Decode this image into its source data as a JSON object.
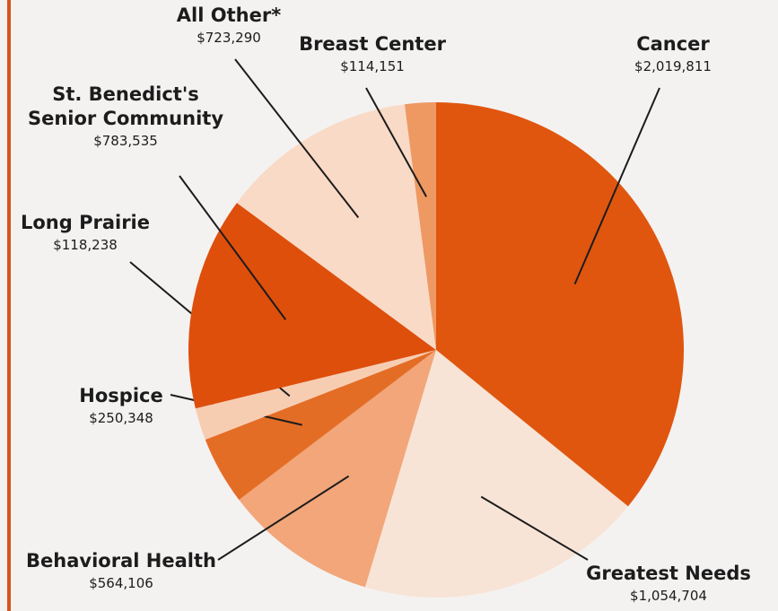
{
  "chart_data": {
    "type": "pie",
    "categories": [
      "Cancer",
      "Greatest Needs",
      "Behavioral Health",
      "Hospice",
      "Long Prairie",
      "St. Benedict's Senior Community",
      "All Other*",
      "Breast Center"
    ],
    "values": [
      2019811,
      1054704,
      564106,
      250348,
      118238,
      783535,
      723290,
      114151
    ],
    "value_labels": [
      "$2,019,811",
      "$1,054,704",
      "$564,106",
      "$250,348",
      "$118,238",
      "$783,535",
      "$723,290",
      "$114,151"
    ],
    "colors": [
      "#e0560f",
      "#f8e4d6",
      "#f2a679",
      "#e46d26",
      "#f7cdb2",
      "#de4f0c",
      "#f9dac6",
      "#ee9962"
    ]
  }
}
